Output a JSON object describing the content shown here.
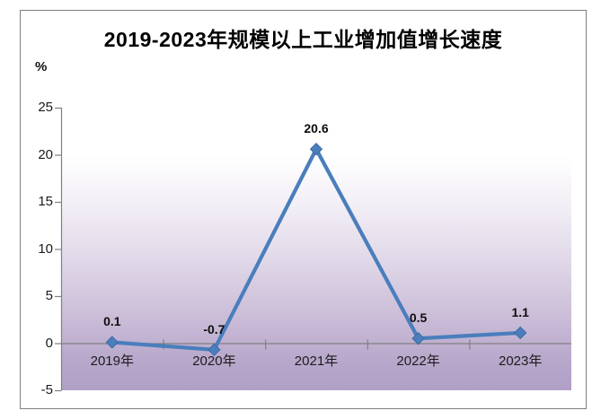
{
  "frame": {
    "border_color": "#7f7f7f",
    "background": "#ffffff"
  },
  "chart_data": {
    "type": "line",
    "title": "2019-2023年规模以上工业增加值增长速度",
    "unit_label": "%",
    "categories": [
      "2019年",
      "2020年",
      "2021年",
      "2022年",
      "2023年"
    ],
    "series": [
      {
        "values": [
          0.1,
          -0.7,
          20.6,
          0.5,
          1.1
        ]
      }
    ],
    "data_labels": [
      "0.1",
      "-0.7",
      "20.6",
      "0.5",
      "1.1"
    ],
    "ylim": [
      -5,
      25
    ],
    "ytick_step": 5,
    "yticks": [
      25,
      20,
      15,
      10,
      5,
      0,
      -5
    ],
    "grid": "category-axis-line-only",
    "legend": "none",
    "marker": "diamond",
    "colors": {
      "line": "#4a7ebc",
      "marker": "#4a7ebc",
      "marker_edge": "#3e6ca3",
      "axis": "#808080",
      "plot_gradient_top": "#ffffff",
      "plot_gradient_bottom": "#b1a0c6"
    }
  }
}
